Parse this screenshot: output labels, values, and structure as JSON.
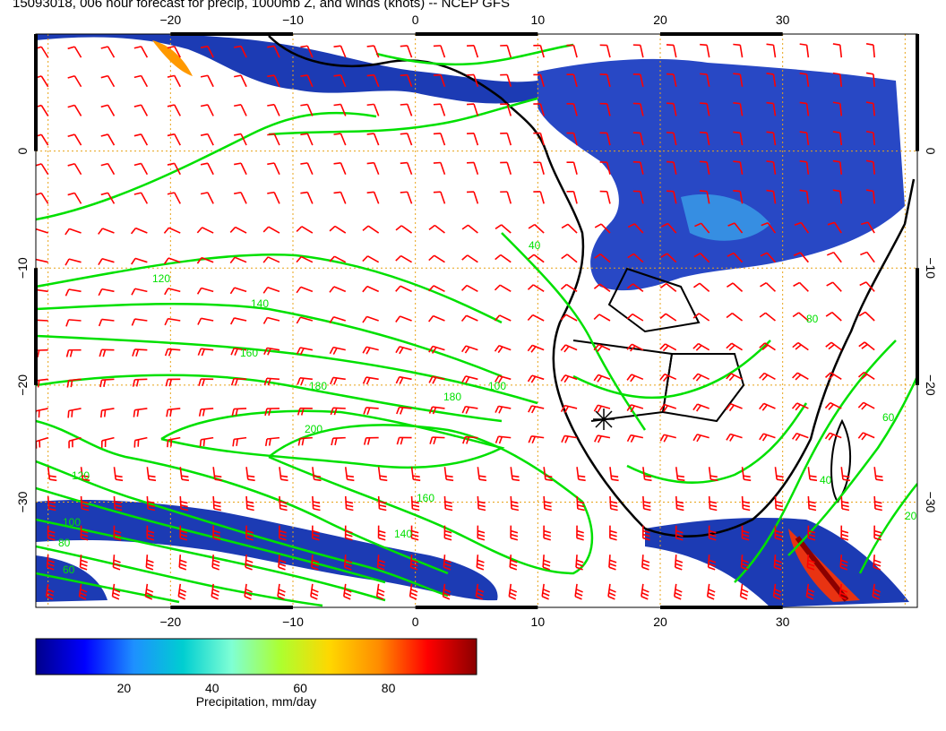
{
  "title": "15093018, 006 hour forecast for precip, 1000mb Z, and winds (knots) -- NCEP GFS",
  "map": {
    "lon_range": [
      -31,
      41
    ],
    "lat_range": [
      -39,
      10
    ],
    "lon_ticks": [
      "−20",
      "−10",
      "0",
      "10",
      "20",
      "30"
    ],
    "lat_ticks_left": [
      "0",
      "−10",
      "−20",
      "−30"
    ],
    "lat_ticks_right": [
      "0",
      "−10",
      "−20",
      "−30"
    ],
    "gridline_color": "#e8a317",
    "wind_barb_color": "#ff0000",
    "contour_color": "#00e000",
    "coastline_color": "#000000",
    "contour_labels": [
      "120",
      "140",
      "160",
      "180",
      "200",
      "180",
      "160",
      "140",
      "120",
      "100",
      "80",
      "60",
      "40",
      "100",
      "80",
      "60",
      "40",
      "20"
    ]
  },
  "colorbar": {
    "label": "Precipitation, mm/day",
    "ticks": [
      "20",
      "40",
      "60",
      "80"
    ],
    "range": [
      0,
      100
    ],
    "colors": [
      "#00008b",
      "#0000ff",
      "#1e90ff",
      "#00ced1",
      "#7fffd4",
      "#adff2f",
      "#ffd700",
      "#ff8c00",
      "#ff0000",
      "#8b0000"
    ]
  }
}
